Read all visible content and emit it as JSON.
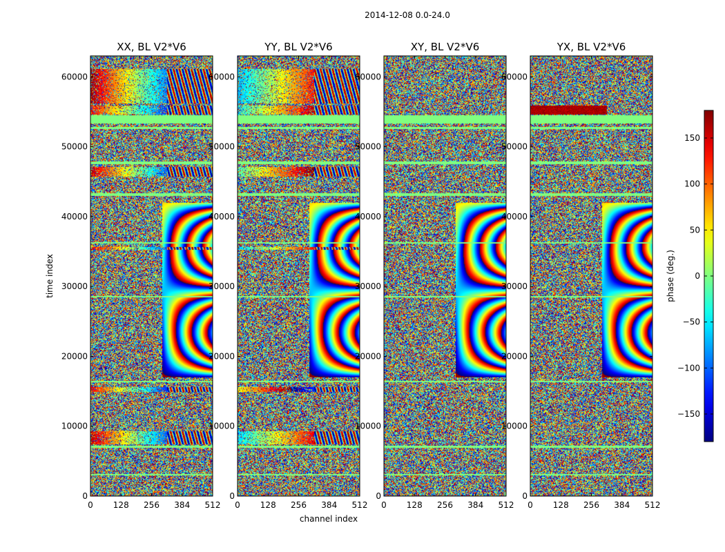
{
  "chart_data": {
    "type": "heatmap",
    "title": "2014-12-08 0.0-24.0",
    "xlabel": "channel index",
    "ylabel": "time index",
    "xlim": [
      0,
      512
    ],
    "ylim": [
      0,
      63000
    ],
    "x_ticks": [
      "0",
      "128",
      "256",
      "384",
      "512"
    ],
    "y_ticks": [
      "0",
      "10000",
      "20000",
      "30000",
      "40000",
      "50000",
      "60000"
    ],
    "x_tick_values": [
      0,
      128,
      256,
      384,
      512
    ],
    "y_tick_values": [
      0,
      10000,
      20000,
      30000,
      40000,
      50000,
      60000
    ],
    "panels": [
      {
        "title": "XX, BL V2*V6",
        "variant": 0
      },
      {
        "title": "YY, BL V2*V6",
        "variant": 1
      },
      {
        "title": "XY, BL V2*V6",
        "variant": 2
      },
      {
        "title": "YX, BL V2*V6",
        "variant": 3
      }
    ],
    "colorbar": {
      "label": "phase (deg.)",
      "range": [
        -180,
        180
      ],
      "ticks": [
        "150",
        "100",
        "50",
        "0",
        "−50",
        "−100",
        "−150"
      ],
      "tick_values": [
        150,
        100,
        50,
        0,
        -50,
        -100,
        -150
      ],
      "colormap": "jet"
    },
    "flagged_bands": [
      [
        53400,
        54600
      ],
      [
        52600,
        52900
      ],
      [
        47500,
        47900
      ],
      [
        43000,
        43400
      ],
      [
        36200,
        36400
      ],
      [
        28500,
        28700
      ],
      [
        16300,
        16500
      ],
      [
        7000,
        7300
      ],
      [
        3000,
        3200
      ]
    ],
    "coherent_bands": [
      {
        "range": [
          54700,
          55900
        ],
        "xx": 140,
        "yy": -40
      },
      {
        "range": [
          56200,
          61200
        ],
        "xx": 170,
        "yy": -70
      },
      {
        "range": [
          45800,
          47200
        ],
        "xx": 160,
        "yy": -20
      },
      {
        "range": [
          35300,
          35700
        ],
        "xx": 150,
        "yy": -60
      },
      {
        "range": [
          15000,
          15700
        ],
        "xx": 140,
        "yy": 40
      },
      {
        "range": [
          7500,
          9300
        ],
        "xx": 160,
        "yy": -60
      }
    ]
  }
}
